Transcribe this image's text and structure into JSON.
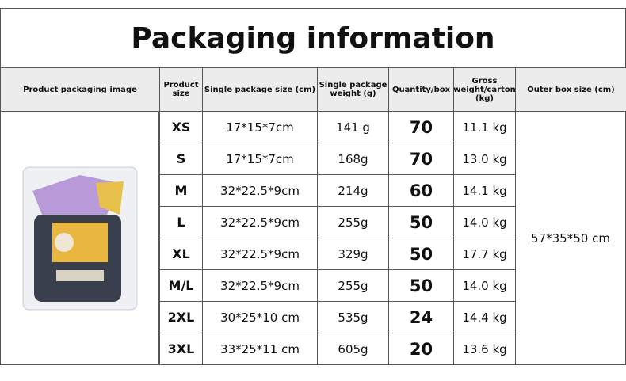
{
  "title": "Packaging information",
  "table": {
    "headers": [
      "Product packaging image",
      "Product size",
      "Single package size (cm)",
      "Single package weight (g)",
      "Quantity/box",
      "Gross weight/carton (kg)",
      "Outer box size (cm)"
    ],
    "rows": [
      [
        "XS",
        "17*15*7cm",
        "141 g",
        70,
        "11.1 kg"
      ],
      [
        "S",
        "17*15*7cm",
        "168g",
        70,
        "13.0 kg"
      ],
      [
        "M",
        "32*22.5*9cm",
        "214g",
        60,
        "14.1 kg"
      ],
      [
        "L",
        "32*22.5*9cm",
        "255g",
        50,
        "14.0 kg"
      ],
      [
        "XL",
        "32*22.5*9cm",
        "329g",
        50,
        "17.7 kg"
      ],
      [
        "M/L",
        "32*22.5*9cm",
        "255g",
        50,
        "14.0 kg"
      ],
      [
        "2XL",
        "30*25*10 cm",
        "535g",
        24,
        "14.4 kg"
      ],
      [
        "3XL",
        "33*25*11 cm",
        "605g",
        20,
        "13.6 kg"
      ]
    ],
    "outer_box_size": "57*35*50 cm"
  }
}
